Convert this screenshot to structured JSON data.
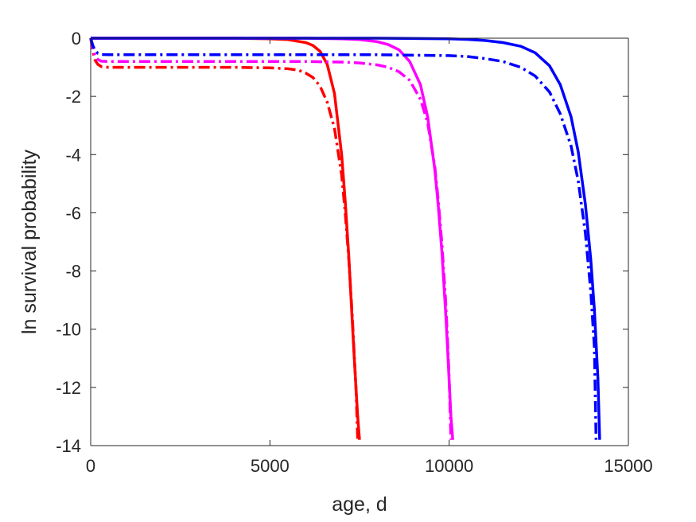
{
  "chart_data": {
    "type": "line",
    "xlabel": "age, d",
    "ylabel": "ln survival probability",
    "xlim": [
      0,
      15000
    ],
    "ylim": [
      -14,
      0
    ],
    "xticks": [
      0,
      5000,
      10000,
      15000
    ],
    "yticks": [
      -14,
      -12,
      -10,
      -8,
      -6,
      -4,
      -2,
      0
    ],
    "grid": false,
    "legend": "none",
    "series": [
      {
        "color": "#ff0000",
        "style": "solid",
        "x": [
          0,
          1000,
          2000,
          3000,
          4000,
          5000,
          5500,
          6000,
          6200,
          6400,
          6600,
          6800,
          7000,
          7100,
          7200,
          7300,
          7350,
          7400,
          7450,
          7480,
          7500
        ],
        "y": [
          0,
          0,
          0,
          0,
          0,
          -0.02,
          -0.05,
          -0.15,
          -0.25,
          -0.45,
          -0.9,
          -1.9,
          -4.0,
          -5.6,
          -7.5,
          -9.8,
          -10.9,
          -12.0,
          -13.0,
          -13.5,
          -13.8
        ]
      },
      {
        "color": "#ff0000",
        "style": "dashdot",
        "x": [
          0,
          60,
          120,
          200,
          300,
          500,
          1000,
          2000,
          3000,
          4000,
          5000,
          5500,
          5800,
          6000,
          6200,
          6400,
          6600,
          6800,
          7000,
          7100,
          7200,
          7300,
          7350,
          7400,
          7450
        ],
        "y": [
          0,
          -0.45,
          -0.75,
          -0.9,
          -0.98,
          -1.0,
          -1.0,
          -1.0,
          -1.0,
          -1.0,
          -1.02,
          -1.05,
          -1.1,
          -1.2,
          -1.35,
          -1.65,
          -2.2,
          -3.1,
          -4.7,
          -6.0,
          -7.6,
          -9.6,
          -10.8,
          -12.0,
          -13.8
        ]
      },
      {
        "color": "#ff00ff",
        "style": "solid",
        "x": [
          0,
          1000,
          2000,
          4000,
          6000,
          7000,
          7500,
          8000,
          8300,
          8600,
          8900,
          9200,
          9400,
          9600,
          9700,
          9800,
          9900,
          9950,
          10000,
          10050,
          10100
        ],
        "y": [
          0,
          0,
          0,
          0,
          0,
          -0.02,
          -0.05,
          -0.12,
          -0.22,
          -0.4,
          -0.8,
          -1.6,
          -2.7,
          -4.5,
          -5.8,
          -7.4,
          -9.4,
          -10.5,
          -11.8,
          -13.0,
          -13.8
        ]
      },
      {
        "color": "#ff00ff",
        "style": "dashdot",
        "x": [
          0,
          60,
          120,
          200,
          300,
          500,
          1000,
          2000,
          4000,
          6000,
          7000,
          7500,
          8000,
          8300,
          8600,
          8900,
          9200,
          9400,
          9600,
          9700,
          9800,
          9900,
          9950,
          10000,
          10050
        ],
        "y": [
          0,
          -0.35,
          -0.6,
          -0.73,
          -0.79,
          -0.8,
          -0.8,
          -0.8,
          -0.8,
          -0.8,
          -0.82,
          -0.85,
          -0.92,
          -1.0,
          -1.15,
          -1.45,
          -2.1,
          -2.9,
          -4.4,
          -5.6,
          -7.1,
          -9.0,
          -10.2,
          -11.7,
          -13.8
        ]
      },
      {
        "color": "#0000ff",
        "style": "solid",
        "x": [
          0,
          2000,
          4000,
          6000,
          8000,
          10000,
          10500,
          11000,
          11500,
          12000,
          12400,
          12800,
          13100,
          13400,
          13600,
          13800,
          13950,
          14050,
          14150,
          14200
        ],
        "y": [
          0,
          0,
          0,
          0,
          0,
          -0.02,
          -0.04,
          -0.08,
          -0.15,
          -0.28,
          -0.5,
          -0.95,
          -1.6,
          -2.7,
          -3.9,
          -5.7,
          -7.6,
          -9.3,
          -11.7,
          -13.8
        ]
      },
      {
        "color": "#0000ff",
        "style": "dashdot",
        "x": [
          0,
          60,
          120,
          200,
          300,
          500,
          1000,
          2000,
          4000,
          6000,
          8000,
          10000,
          10500,
          11000,
          11500,
          12000,
          12400,
          12800,
          13100,
          13400,
          13600,
          13800,
          13950,
          14050,
          14100
        ],
        "y": [
          0,
          -0.25,
          -0.42,
          -0.52,
          -0.56,
          -0.57,
          -0.57,
          -0.57,
          -0.57,
          -0.57,
          -0.57,
          -0.6,
          -0.63,
          -0.7,
          -0.8,
          -1.0,
          -1.3,
          -1.85,
          -2.6,
          -3.7,
          -4.9,
          -6.7,
          -8.7,
          -10.6,
          -13.8
        ]
      }
    ]
  }
}
